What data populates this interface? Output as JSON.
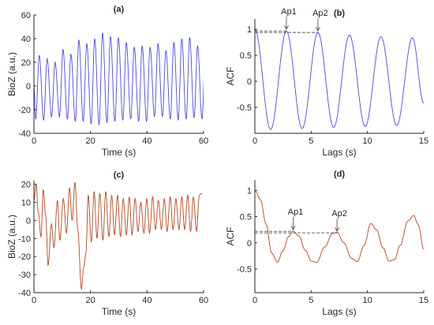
{
  "chart_data": [
    {
      "id": "a",
      "type": "line",
      "title": "(a)",
      "xlabel": "Time (s)",
      "ylabel": "BioZ (a.u.)",
      "xlim": [
        0,
        60
      ],
      "ylim": [
        -40,
        60
      ],
      "xticks": [
        0,
        20,
        40,
        60
      ],
      "yticks": [
        -40,
        -20,
        0,
        20,
        40,
        60
      ],
      "color": "#4a4ae0",
      "series": [
        {
          "signal": "oscillation",
          "period_s": 2.8,
          "peaks": [
            26,
            23,
            20,
            31,
            27,
            39,
            36,
            40,
            45,
            42,
            41,
            37,
            33,
            34,
            33,
            36,
            30,
            37,
            40,
            41,
            34,
            33
          ],
          "troughs": [
            -28,
            -29,
            -26,
            -26,
            -28,
            -30,
            -30,
            -32,
            -33,
            -31,
            -30,
            -29,
            -28,
            -30,
            -30,
            -26,
            -26,
            -28,
            -29,
            -28,
            -27,
            -28
          ],
          "end_value": 33
        }
      ],
      "grid": false
    },
    {
      "id": "b",
      "type": "line",
      "title": "(b)",
      "xlabel": "Lags (s)",
      "ylabel": "ACF",
      "xlim": [
        0,
        15
      ],
      "ylim": [
        -1,
        1.2
      ],
      "xticks": [
        0,
        5,
        10,
        15
      ],
      "yticks": [
        -0.5,
        0,
        0.5,
        1
      ],
      "color": "#4a4ae0",
      "series": [
        {
          "signal": "decaying_cosine",
          "period_s": 2.8,
          "start": 1.0,
          "peaks": [
            [
              2.8,
              0.97
            ],
            [
              5.6,
              0.94
            ],
            [
              8.4,
              0.89
            ],
            [
              11.2,
              0.86
            ],
            [
              14.0,
              0.84
            ]
          ],
          "troughs": [
            [
              1.4,
              -0.93
            ],
            [
              4.2,
              -0.91
            ],
            [
              7.0,
              -0.89
            ],
            [
              9.8,
              -0.87
            ],
            [
              12.6,
              -0.85
            ]
          ],
          "end_value": -0.42
        }
      ],
      "annotations": [
        {
          "label": "Ap1",
          "x": 2.8,
          "y": 0.97
        },
        {
          "label": "Ap2",
          "x": 5.6,
          "y": 0.94
        }
      ],
      "grid": false
    },
    {
      "id": "c",
      "type": "line",
      "title": "(c)",
      "xlabel": "Time (s)",
      "ylabel": "BioZ (a.u.)",
      "xlim": [
        0,
        60
      ],
      "ylim": [
        -40,
        22
      ],
      "xticks": [
        0,
        20,
        40,
        60
      ],
      "yticks": [
        -40,
        -30,
        -20,
        -10,
        0,
        10,
        20
      ],
      "color": "#b5461e",
      "series": [
        {
          "signal": "noisy_oscillation",
          "points": [
            [
              0,
              11
            ],
            [
              0.8,
              20
            ],
            [
              1.5,
              5
            ],
            [
              2.5,
              -9
            ],
            [
              3.3,
              17
            ],
            [
              4.2,
              2
            ],
            [
              5.0,
              -25
            ],
            [
              6.2,
              -2
            ],
            [
              7.1,
              -15
            ],
            [
              8.3,
              11
            ],
            [
              9.2,
              -11
            ],
            [
              10.4,
              12
            ],
            [
              11.5,
              -7
            ],
            [
              12.6,
              18
            ],
            [
              13.5,
              0
            ],
            [
              14.5,
              21
            ],
            [
              15.5,
              -5
            ],
            [
              16.8,
              -38
            ],
            [
              17.6,
              -26
            ],
            [
              18.4,
              -18
            ],
            [
              19.2,
              14
            ],
            [
              20.3,
              -12
            ],
            [
              21.3,
              16
            ],
            [
              22.3,
              -10
            ],
            [
              23.3,
              15
            ],
            [
              24.4,
              -11
            ],
            [
              25.4,
              16
            ],
            [
              26.5,
              -9
            ],
            [
              27.5,
              14
            ],
            [
              28.5,
              -8
            ],
            [
              29.6,
              14
            ],
            [
              30.6,
              -9
            ],
            [
              31.6,
              12
            ],
            [
              32.7,
              -8
            ],
            [
              33.7,
              13
            ],
            [
              34.7,
              -8
            ],
            [
              35.8,
              12
            ],
            [
              36.8,
              -6
            ],
            [
              37.8,
              10
            ],
            [
              38.9,
              -7
            ],
            [
              39.9,
              12
            ],
            [
              40.9,
              -7
            ],
            [
              42.0,
              13
            ],
            [
              43.0,
              -5
            ],
            [
              44.0,
              11
            ],
            [
              45.1,
              -5
            ],
            [
              46.1,
              12
            ],
            [
              47.1,
              -6
            ],
            [
              48.2,
              13
            ],
            [
              49.2,
              -5
            ],
            [
              50.2,
              12
            ],
            [
              51.3,
              -5
            ],
            [
              52.3,
              13
            ],
            [
              53.3,
              -5
            ],
            [
              54.4,
              14
            ],
            [
              55.4,
              -6
            ],
            [
              56.4,
              13
            ],
            [
              57.5,
              -6
            ],
            [
              58.5,
              14
            ],
            [
              59.5,
              15
            ]
          ]
        }
      ],
      "grid": false
    },
    {
      "id": "d",
      "type": "line",
      "title": "(d)",
      "xlabel": "Lags (s)",
      "ylabel": "ACF",
      "xlim": [
        0,
        15
      ],
      "ylim": [
        -0.95,
        1.2
      ],
      "xticks": [
        0,
        5,
        10,
        15
      ],
      "yticks": [
        -0.5,
        0,
        0.5,
        1
      ],
      "color": "#b5461e",
      "series": [
        {
          "signal": "acf_curve",
          "points": [
            [
              0,
              1.0
            ],
            [
              0.5,
              0.82
            ],
            [
              1.0,
              0.35
            ],
            [
              1.5,
              -0.2
            ],
            [
              2.0,
              -0.37
            ],
            [
              2.5,
              -0.15
            ],
            [
              3.0,
              0.12
            ],
            [
              3.4,
              0.22
            ],
            [
              3.9,
              0.13
            ],
            [
              4.5,
              -0.15
            ],
            [
              5.0,
              -0.35
            ],
            [
              5.5,
              -0.37
            ],
            [
              6.2,
              -0.08
            ],
            [
              6.9,
              0.18
            ],
            [
              7.3,
              0.2
            ],
            [
              7.9,
              0.0
            ],
            [
              8.6,
              -0.3
            ],
            [
              9.1,
              -0.36
            ],
            [
              9.7,
              -0.05
            ],
            [
              10.3,
              0.37
            ],
            [
              10.8,
              0.25
            ],
            [
              11.4,
              -0.1
            ],
            [
              11.9,
              -0.35
            ],
            [
              12.4,
              -0.32
            ],
            [
              12.9,
              -0.05
            ],
            [
              13.6,
              0.42
            ],
            [
              14.1,
              0.52
            ],
            [
              14.5,
              0.35
            ],
            [
              15.0,
              -0.12
            ]
          ]
        }
      ],
      "annotations": [
        {
          "label": "Ap1",
          "x": 3.4,
          "y": 0.22
        },
        {
          "label": "Ap2",
          "x": 7.3,
          "y": 0.19
        }
      ],
      "grid": false
    }
  ]
}
